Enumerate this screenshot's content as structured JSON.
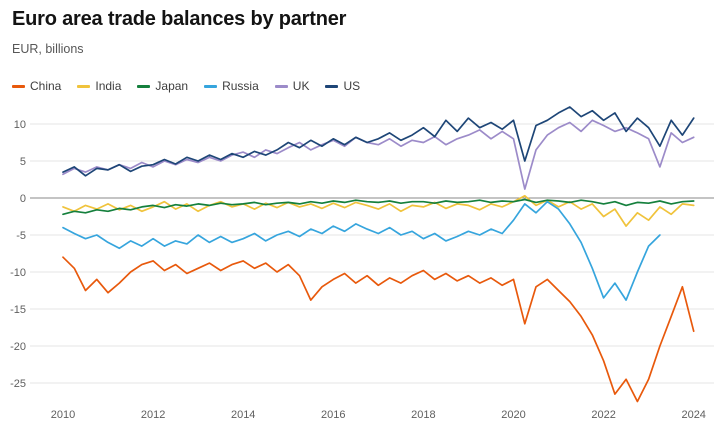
{
  "header": {
    "title": "Euro area trade balances by partner",
    "subtitle": "EUR, billions"
  },
  "chart_data": {
    "type": "line",
    "title": "Euro area trade balances by partner",
    "ylabel": "EUR, billions",
    "x_start": 2010,
    "x_step": 0.25,
    "xticks": [
      2010,
      2012,
      2014,
      2016,
      2018,
      2020,
      2022,
      2024
    ],
    "yticks": [
      10,
      5,
      0,
      -5,
      -10,
      -15,
      -20,
      -25
    ],
    "ylim": [
      -28,
      13
    ],
    "grid": "horizontal",
    "zero_line": true,
    "legend_position": "top",
    "colors": {
      "grid": "#e5e5e5",
      "zero_line": "#8a8a8a",
      "tick_text": "#5f5f5f"
    },
    "series": [
      {
        "name": "China",
        "color": "#e8590c",
        "values": [
          -8.0,
          -9.5,
          -12.5,
          -11.0,
          -12.8,
          -11.5,
          -10.0,
          -9.0,
          -8.5,
          -9.8,
          -9.0,
          -10.2,
          -9.5,
          -8.8,
          -9.8,
          -9.0,
          -8.5,
          -9.5,
          -8.8,
          -10.0,
          -9.0,
          -10.5,
          -13.8,
          -12.0,
          -11.0,
          -10.2,
          -11.5,
          -10.5,
          -11.8,
          -10.8,
          -11.5,
          -10.5,
          -9.8,
          -11.0,
          -10.2,
          -11.2,
          -10.5,
          -11.5,
          -10.8,
          -11.8,
          -11.0,
          -17.0,
          -12.0,
          -11.0,
          -12.5,
          -14.0,
          -16.0,
          -18.5,
          -22.0,
          -26.5,
          -24.5,
          -27.5,
          -24.5,
          -20.0,
          -16.0,
          -12.0,
          -18.0
        ]
      },
      {
        "name": "India",
        "color": "#f0c33c",
        "values": [
          -1.2,
          -1.8,
          -1.0,
          -1.5,
          -0.8,
          -1.6,
          -1.0,
          -1.8,
          -1.2,
          -0.5,
          -1.5,
          -0.8,
          -1.8,
          -1.0,
          -0.5,
          -1.2,
          -0.8,
          -1.5,
          -0.7,
          -1.3,
          -0.6,
          -1.2,
          -0.8,
          -1.4,
          -0.7,
          -1.3,
          -0.6,
          -1.0,
          -1.5,
          -0.8,
          -1.8,
          -1.0,
          -1.2,
          -0.6,
          -1.4,
          -0.8,
          -1.0,
          -1.6,
          -0.8,
          -1.2,
          -0.5,
          0.3,
          -1.0,
          -0.3,
          -1.2,
          -0.5,
          -1.5,
          -0.8,
          -2.5,
          -1.5,
          -3.8,
          -2.0,
          -3.0,
          -1.2,
          -2.2,
          -0.8,
          -1.0
        ]
      },
      {
        "name": "Japan",
        "color": "#15803d",
        "values": [
          -2.2,
          -1.8,
          -2.0,
          -1.6,
          -1.8,
          -1.4,
          -1.6,
          -1.2,
          -1.0,
          -1.3,
          -0.9,
          -1.1,
          -0.8,
          -1.0,
          -0.7,
          -0.9,
          -0.8,
          -0.6,
          -0.9,
          -0.7,
          -0.6,
          -0.8,
          -0.5,
          -0.7,
          -0.4,
          -0.6,
          -0.3,
          -0.5,
          -0.6,
          -0.4,
          -0.7,
          -0.5,
          -0.5,
          -0.7,
          -0.4,
          -0.6,
          -0.5,
          -0.3,
          -0.6,
          -0.4,
          -0.5,
          -0.2,
          -0.6,
          -0.3,
          -0.4,
          -0.6,
          -0.3,
          -0.5,
          -0.8,
          -0.5,
          -1.0,
          -0.6,
          -0.7,
          -0.4,
          -0.8,
          -0.5,
          -0.4
        ]
      },
      {
        "name": "Russia",
        "color": "#36a5dd",
        "values": [
          -4.0,
          -4.8,
          -5.5,
          -5.0,
          -6.0,
          -6.8,
          -5.8,
          -6.5,
          -5.5,
          -6.5,
          -5.8,
          -6.2,
          -5.0,
          -6.0,
          -5.2,
          -6.0,
          -5.5,
          -4.8,
          -5.8,
          -5.0,
          -4.5,
          -5.2,
          -4.2,
          -4.8,
          -3.8,
          -4.5,
          -3.5,
          -4.2,
          -4.8,
          -4.0,
          -5.0,
          -4.5,
          -5.5,
          -4.8,
          -5.8,
          -5.2,
          -4.5,
          -5.0,
          -4.2,
          -4.8,
          -3.0,
          -0.8,
          -2.0,
          -0.5,
          -1.5,
          -3.5,
          -6.0,
          -9.5,
          -13.5,
          -11.5,
          -13.8,
          -10.0,
          -6.5,
          -5.0,
          null,
          null,
          null
        ]
      },
      {
        "name": "UK",
        "color": "#9c8bc9",
        "values": [
          3.2,
          4.0,
          3.5,
          4.2,
          3.8,
          4.5,
          4.0,
          4.8,
          4.2,
          5.0,
          4.5,
          5.2,
          4.8,
          5.5,
          5.0,
          5.8,
          6.2,
          5.5,
          6.5,
          6.0,
          6.8,
          7.5,
          6.5,
          7.2,
          7.8,
          7.0,
          8.2,
          7.5,
          7.2,
          8.0,
          7.0,
          7.8,
          7.5,
          8.3,
          7.2,
          8.0,
          8.5,
          9.2,
          8.0,
          9.0,
          8.0,
          1.2,
          6.5,
          8.5,
          9.5,
          10.2,
          9.0,
          10.5,
          9.8,
          9.0,
          9.5,
          8.8,
          8.0,
          4.2,
          8.8,
          7.5,
          8.2
        ]
      },
      {
        "name": "US",
        "color": "#1e4677",
        "values": [
          3.5,
          4.2,
          3.0,
          4.0,
          3.8,
          4.5,
          3.6,
          4.3,
          4.5,
          5.2,
          4.6,
          5.5,
          5.0,
          5.8,
          5.2,
          6.0,
          5.5,
          6.3,
          5.8,
          6.5,
          7.5,
          6.8,
          7.8,
          7.0,
          8.0,
          7.2,
          8.2,
          7.5,
          8.0,
          8.8,
          7.8,
          8.5,
          9.5,
          8.3,
          10.5,
          9.0,
          10.8,
          9.5,
          10.2,
          9.3,
          10.5,
          5.0,
          9.8,
          10.5,
          11.5,
          12.3,
          11.0,
          11.8,
          10.5,
          11.5,
          9.0,
          10.8,
          9.5,
          7.0,
          10.5,
          8.5,
          10.8
        ]
      }
    ]
  }
}
